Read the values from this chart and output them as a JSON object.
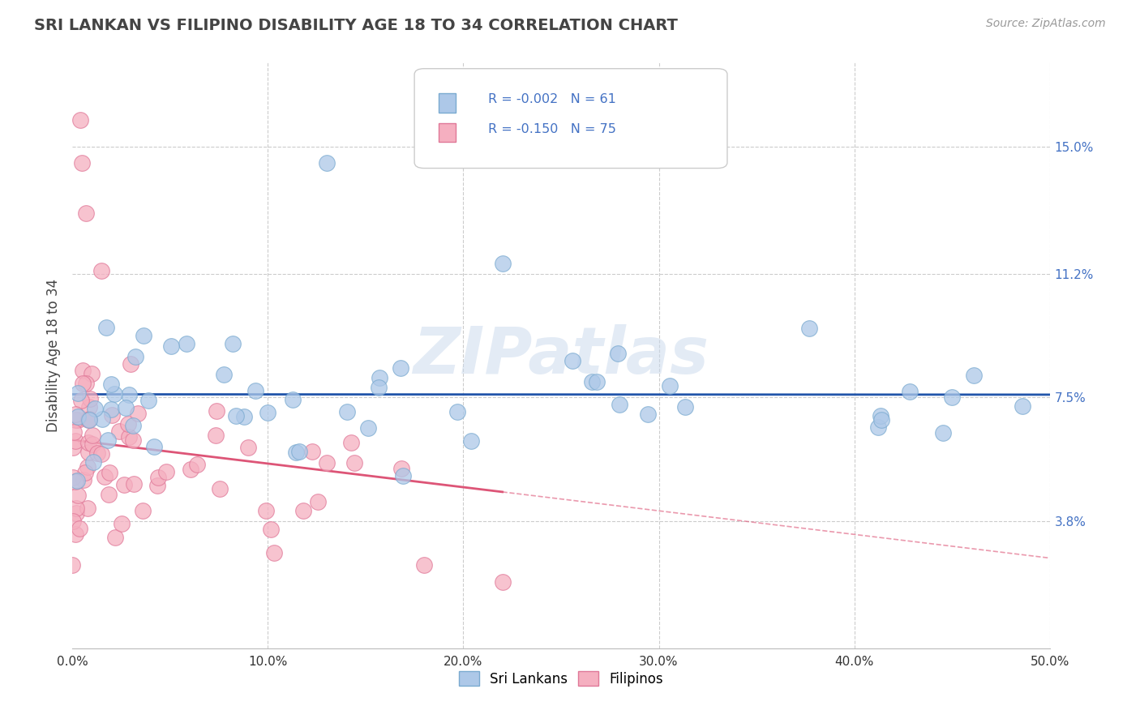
{
  "title": "SRI LANKAN VS FILIPINO DISABILITY AGE 18 TO 34 CORRELATION CHART",
  "source_text": "Source: ZipAtlas.com",
  "ylabel": "Disability Age 18 to 34",
  "xlim": [
    0.0,
    0.5
  ],
  "ylim": [
    0.0,
    0.175
  ],
  "xticks": [
    0.0,
    0.1,
    0.2,
    0.3,
    0.4,
    0.5
  ],
  "xticklabels": [
    "0.0%",
    "10.0%",
    "20.0%",
    "30.0%",
    "40.0%",
    "50.0%"
  ],
  "yticks": [
    0.038,
    0.075,
    0.112,
    0.15
  ],
  "yticklabels": [
    "3.8%",
    "7.5%",
    "11.2%",
    "15.0%"
  ],
  "legend_labels": [
    "Sri Lankans",
    "Filipinos"
  ],
  "sri_lankan_color": "#adc8e8",
  "filipino_color": "#f5afc0",
  "sri_lankan_edge": "#7aaad0",
  "filipino_edge": "#e07898",
  "sri_lankan_trendline_color": "#2255aa",
  "filipino_trendline_color": "#dd5577",
  "grid_color": "#cccccc",
  "background_color": "#ffffff",
  "watermark_text": "ZIPatlas",
  "R_sri": -0.002,
  "N_sri": 61,
  "R_fil": -0.15,
  "N_fil": 75,
  "title_color": "#444444",
  "ylabel_color": "#444444",
  "tick_color": "#333333",
  "right_tick_color": "#4472c4",
  "source_color": "#999999"
}
